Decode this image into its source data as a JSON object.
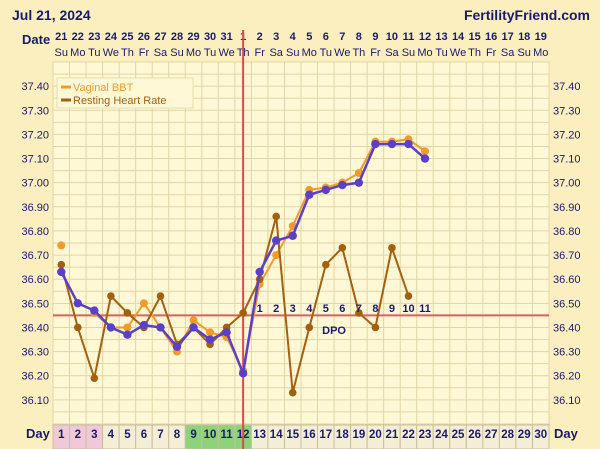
{
  "header": {
    "date": "Jul 21, 2024",
    "brand": "FertilityFriend.com",
    "date_row_label": "Date",
    "cd_row_label": "Day"
  },
  "calendar": {
    "dates": [
      "21",
      "22",
      "23",
      "24",
      "25",
      "26",
      "27",
      "28",
      "29",
      "30",
      "31",
      "1",
      "2",
      "3",
      "4",
      "5",
      "6",
      "7",
      "8",
      "9",
      "10",
      "11",
      "12",
      "13",
      "14",
      "15",
      "16",
      "17",
      "18",
      "19"
    ],
    "weekdays": [
      "Su",
      "Mo",
      "Tu",
      "We",
      "Th",
      "Fr",
      "Sa",
      "Su",
      "Mo",
      "Tu",
      "We",
      "Th",
      "Fr",
      "Sa",
      "Su",
      "Mo",
      "Tu",
      "We",
      "Th",
      "Fr",
      "Sa",
      "Su",
      "Mo",
      "Tu",
      "We",
      "Th",
      "Fr",
      "Sa",
      "Su",
      "Mo"
    ],
    "cycle_days": [
      "1",
      "2",
      "3",
      "4",
      "5",
      "6",
      "7",
      "8",
      "9",
      "10",
      "11",
      "12",
      "13",
      "14",
      "15",
      "16",
      "17",
      "18",
      "19",
      "20",
      "21",
      "22",
      "23",
      "24",
      "25",
      "26",
      "27",
      "28",
      "29",
      "30"
    ],
    "dpo_label": "DPO",
    "dpo_days": [
      "1",
      "2",
      "3",
      "4",
      "5",
      "6",
      "7",
      "8",
      "9",
      "10",
      "11"
    ]
  },
  "colors": {
    "bbt": "#f39a2a",
    "rhr": "#a3600f",
    "fertile_overlay": "#5a3fc8",
    "coverline": "#d96060",
    "ovulation": "#d94a4a",
    "grid": "#e0d6a4",
    "plot_bg": "#fff8d6",
    "period_cell": "#f1c8d8",
    "fertile_cell": "#8cd47a",
    "future_cell": "#f4eed6"
  },
  "chart_data": {
    "type": "line",
    "ylim": [
      36.0,
      37.5
    ],
    "yticks": [
      "37.40",
      "37.30",
      "37.20",
      "37.10",
      "37.00",
      "36.90",
      "36.80",
      "36.70",
      "36.60",
      "36.50",
      "36.40",
      "36.30",
      "36.20",
      "36.10"
    ],
    "x": [
      1,
      2,
      3,
      4,
      5,
      6,
      7,
      8,
      9,
      10,
      11,
      12,
      13,
      14,
      15,
      16,
      17,
      18,
      19,
      20,
      21,
      22,
      23,
      24,
      25,
      26,
      27,
      28,
      29,
      30
    ],
    "coverline": 36.45,
    "ovulation_cycle_day": 12,
    "series": [
      {
        "name": "Vaginal BBT",
        "values": [
          36.74,
          null,
          36.46,
          36.4,
          36.4,
          36.5,
          36.4,
          36.3,
          36.43,
          36.38,
          36.36,
          36.22,
          36.58,
          36.7,
          36.82,
          36.97,
          36.98,
          37.0,
          37.04,
          37.17,
          37.17,
          37.18,
          37.13,
          null,
          null,
          null,
          null,
          null,
          null,
          null
        ]
      },
      {
        "name": "Resting Heart Rate",
        "values": [
          36.66,
          36.4,
          36.19,
          36.53,
          36.46,
          36.4,
          36.53,
          36.33,
          36.4,
          36.33,
          36.4,
          36.46,
          36.6,
          36.86,
          36.13,
          36.4,
          36.66,
          36.73,
          36.46,
          36.4,
          36.73,
          36.53,
          null,
          null,
          null,
          null,
          null,
          null,
          null,
          null
        ]
      },
      {
        "values": [
          36.63,
          36.5,
          36.47,
          36.4,
          36.37,
          36.41,
          36.4,
          36.32,
          36.4,
          36.35,
          36.38,
          36.21,
          36.63,
          36.76,
          36.78,
          36.95,
          36.97,
          36.99,
          37.0,
          37.16,
          37.16,
          37.16,
          37.1,
          null,
          null,
          null,
          null,
          null,
          null,
          null
        ]
      }
    ]
  }
}
